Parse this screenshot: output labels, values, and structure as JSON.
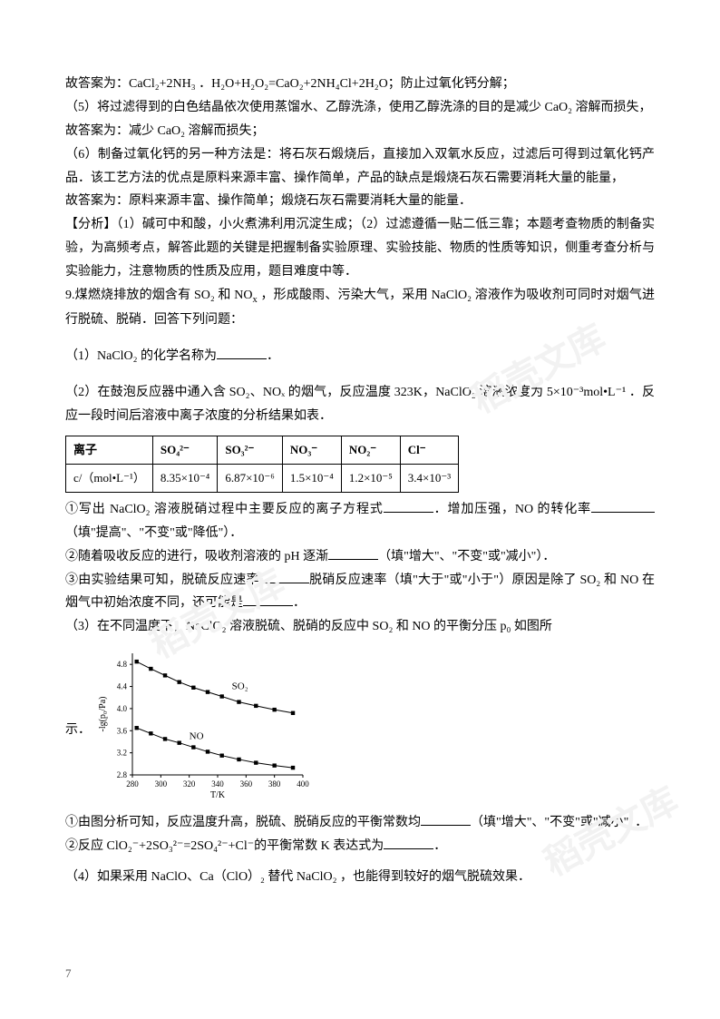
{
  "watermark": "稻壳文库",
  "paragraphs": {
    "p1": "故答案为：CaCl₂+2NH₃ ．H₂O+H₂O₂=CaO₂+2NH₄Cl+2H₂O；防止过氧化钙分解；",
    "p2": "（5）将过滤得到的白色结晶依次使用蒸馏水、乙醇洗涤，使用乙醇洗涤的目的是减少 CaO₂ 溶解而损失，",
    "p3": "故答案为：减少 CaO₂ 溶解而损失；",
    "p4": "（6）制备过氧化钙的另一种方法是：将石灰石煅烧后，直接加入双氧水反应，过滤后可得到过氧化钙产品．该工艺方法的优点是原料来源丰富、操作简单，产品的缺点是煅烧石灰石需要消耗大量的能量，",
    "p5": "故答案为：原料来源丰富、操作简单；煅烧石灰石需要消耗大量的能量．",
    "p6": "【分析】（1）碱可中和酸，小火煮沸利用沉淀生成；（2）过滤遵循一贴二低三靠；本题考查物质的制备实验，为高频考点，解答此题的关键是把握制备实验原理、实验技能、物质的性质等知识，侧重考查分析与实验能力，注意物质的性质及应用，题目难度中等．",
    "p7a": "9.煤燃烧排放的烟含有 SO₂ 和 NO",
    "p7b": "   ，形成酸雨、污染大气，采用 NaClO₂ 溶液作为吸收剂可同时对烟气进行脱硫、脱硝．回答下列问题：",
    "p8a": "（1）NaClO₂ 的化学名称为",
    "p8b": "．",
    "p9": "（2）在鼓泡反应器中通入含 SO₂、NOₓ 的烟气，反应温度 323K，NaClO₂ 溶液浓度为 5×10⁻³mol•L⁻¹  ．反应一段时间后溶液中离子浓度的分析结果如表．",
    "p10a": "①写出 NaClO₂ 溶液脱硝过程中主要反应的离子方程式",
    "p10b": "．增加压强，NO 的转化率",
    "p10c": "（填\"提高\"、\"不变\"或\"降低\"）．",
    "p11a": "②随着吸收反应的进行，吸收剂溶液的 pH 逐渐",
    "p11b": "（填\"增大\"、\"不变\"或\"减小\"）．",
    "p12a": "③由实验结果可知，脱硫反应速率",
    "p12b": "脱硝反应速率（填\"大于\"或\"小于\"）原因是除了 SO₂ 和 NO 在烟气中初始浓度不同，还可能是",
    "p12c": "．",
    "p13": "（3）在不同温度下，NaClO₂ 溶液脱硫、脱硝的反应中 SO₂ 和 NO 的平衡分压 p₀ 如图所",
    "p13_show": "示．",
    "p14a": "①由图分析可知，反应温度升高，脱硫、脱硝反应的平衡常数均",
    "p14b": "（填\"增大\"、\"不变\"或\"减小\"）．",
    "p15a": "②反应 ClO₂⁻+2SO₃²⁻=2SO₄²⁻+Cl⁻的平衡常数 K 表达式为",
    "p15b": "．",
    "p16": "（4）如果采用 NaClO、Ca（ClO）₂ 替代 NaClO₂  ，也能得到较好的烟气脱硫效果．",
    "pageNum": "7"
  },
  "table": {
    "header": [
      "离子",
      "SO₄²⁻",
      "SO₃²⁻",
      "NO₃⁻",
      "NO₂⁻",
      "Cl⁻"
    ],
    "rowLabel": "c/（mol•L⁻¹）",
    "row": [
      "8.35×10⁻⁴",
      "6.87×10⁻⁶",
      "1.5×10⁻⁴",
      "1.2×10⁻⁵",
      "3.4×10⁻³"
    ]
  },
  "chart": {
    "type": "scatter-line",
    "xlabel": "T/K",
    "ylabel": "-lg(p₀/Pa)",
    "xlim": [
      280,
      400
    ],
    "ylim": [
      2.8,
      5.0
    ],
    "xticks": [
      280,
      300,
      320,
      340,
      360,
      380,
      400
    ],
    "yticks": [
      2.8,
      3.2,
      3.6,
      4.0,
      4.4,
      4.8
    ],
    "grid_color": "#cccccc",
    "axis_color": "#000000",
    "marker": "square",
    "marker_size": 5,
    "series": [
      {
        "label": "SO₂",
        "label_pos": [
          350,
          4.35
        ],
        "color": "#000000",
        "points": [
          [
            283,
            4.85
          ],
          [
            293,
            4.72
          ],
          [
            303,
            4.6
          ],
          [
            313,
            4.48
          ],
          [
            323,
            4.38
          ],
          [
            333,
            4.3
          ],
          [
            343,
            4.22
          ],
          [
            355,
            4.12
          ],
          [
            367,
            4.05
          ],
          [
            380,
            3.98
          ],
          [
            393,
            3.92
          ]
        ]
      },
      {
        "label": "NO",
        "label_pos": [
          320,
          3.45
        ],
        "color": "#000000",
        "points": [
          [
            283,
            3.65
          ],
          [
            293,
            3.55
          ],
          [
            303,
            3.45
          ],
          [
            313,
            3.38
          ],
          [
            323,
            3.3
          ],
          [
            333,
            3.22
          ],
          [
            343,
            3.15
          ],
          [
            355,
            3.08
          ],
          [
            367,
            3.02
          ],
          [
            380,
            2.97
          ],
          [
            393,
            2.93
          ]
        ]
      }
    ]
  }
}
